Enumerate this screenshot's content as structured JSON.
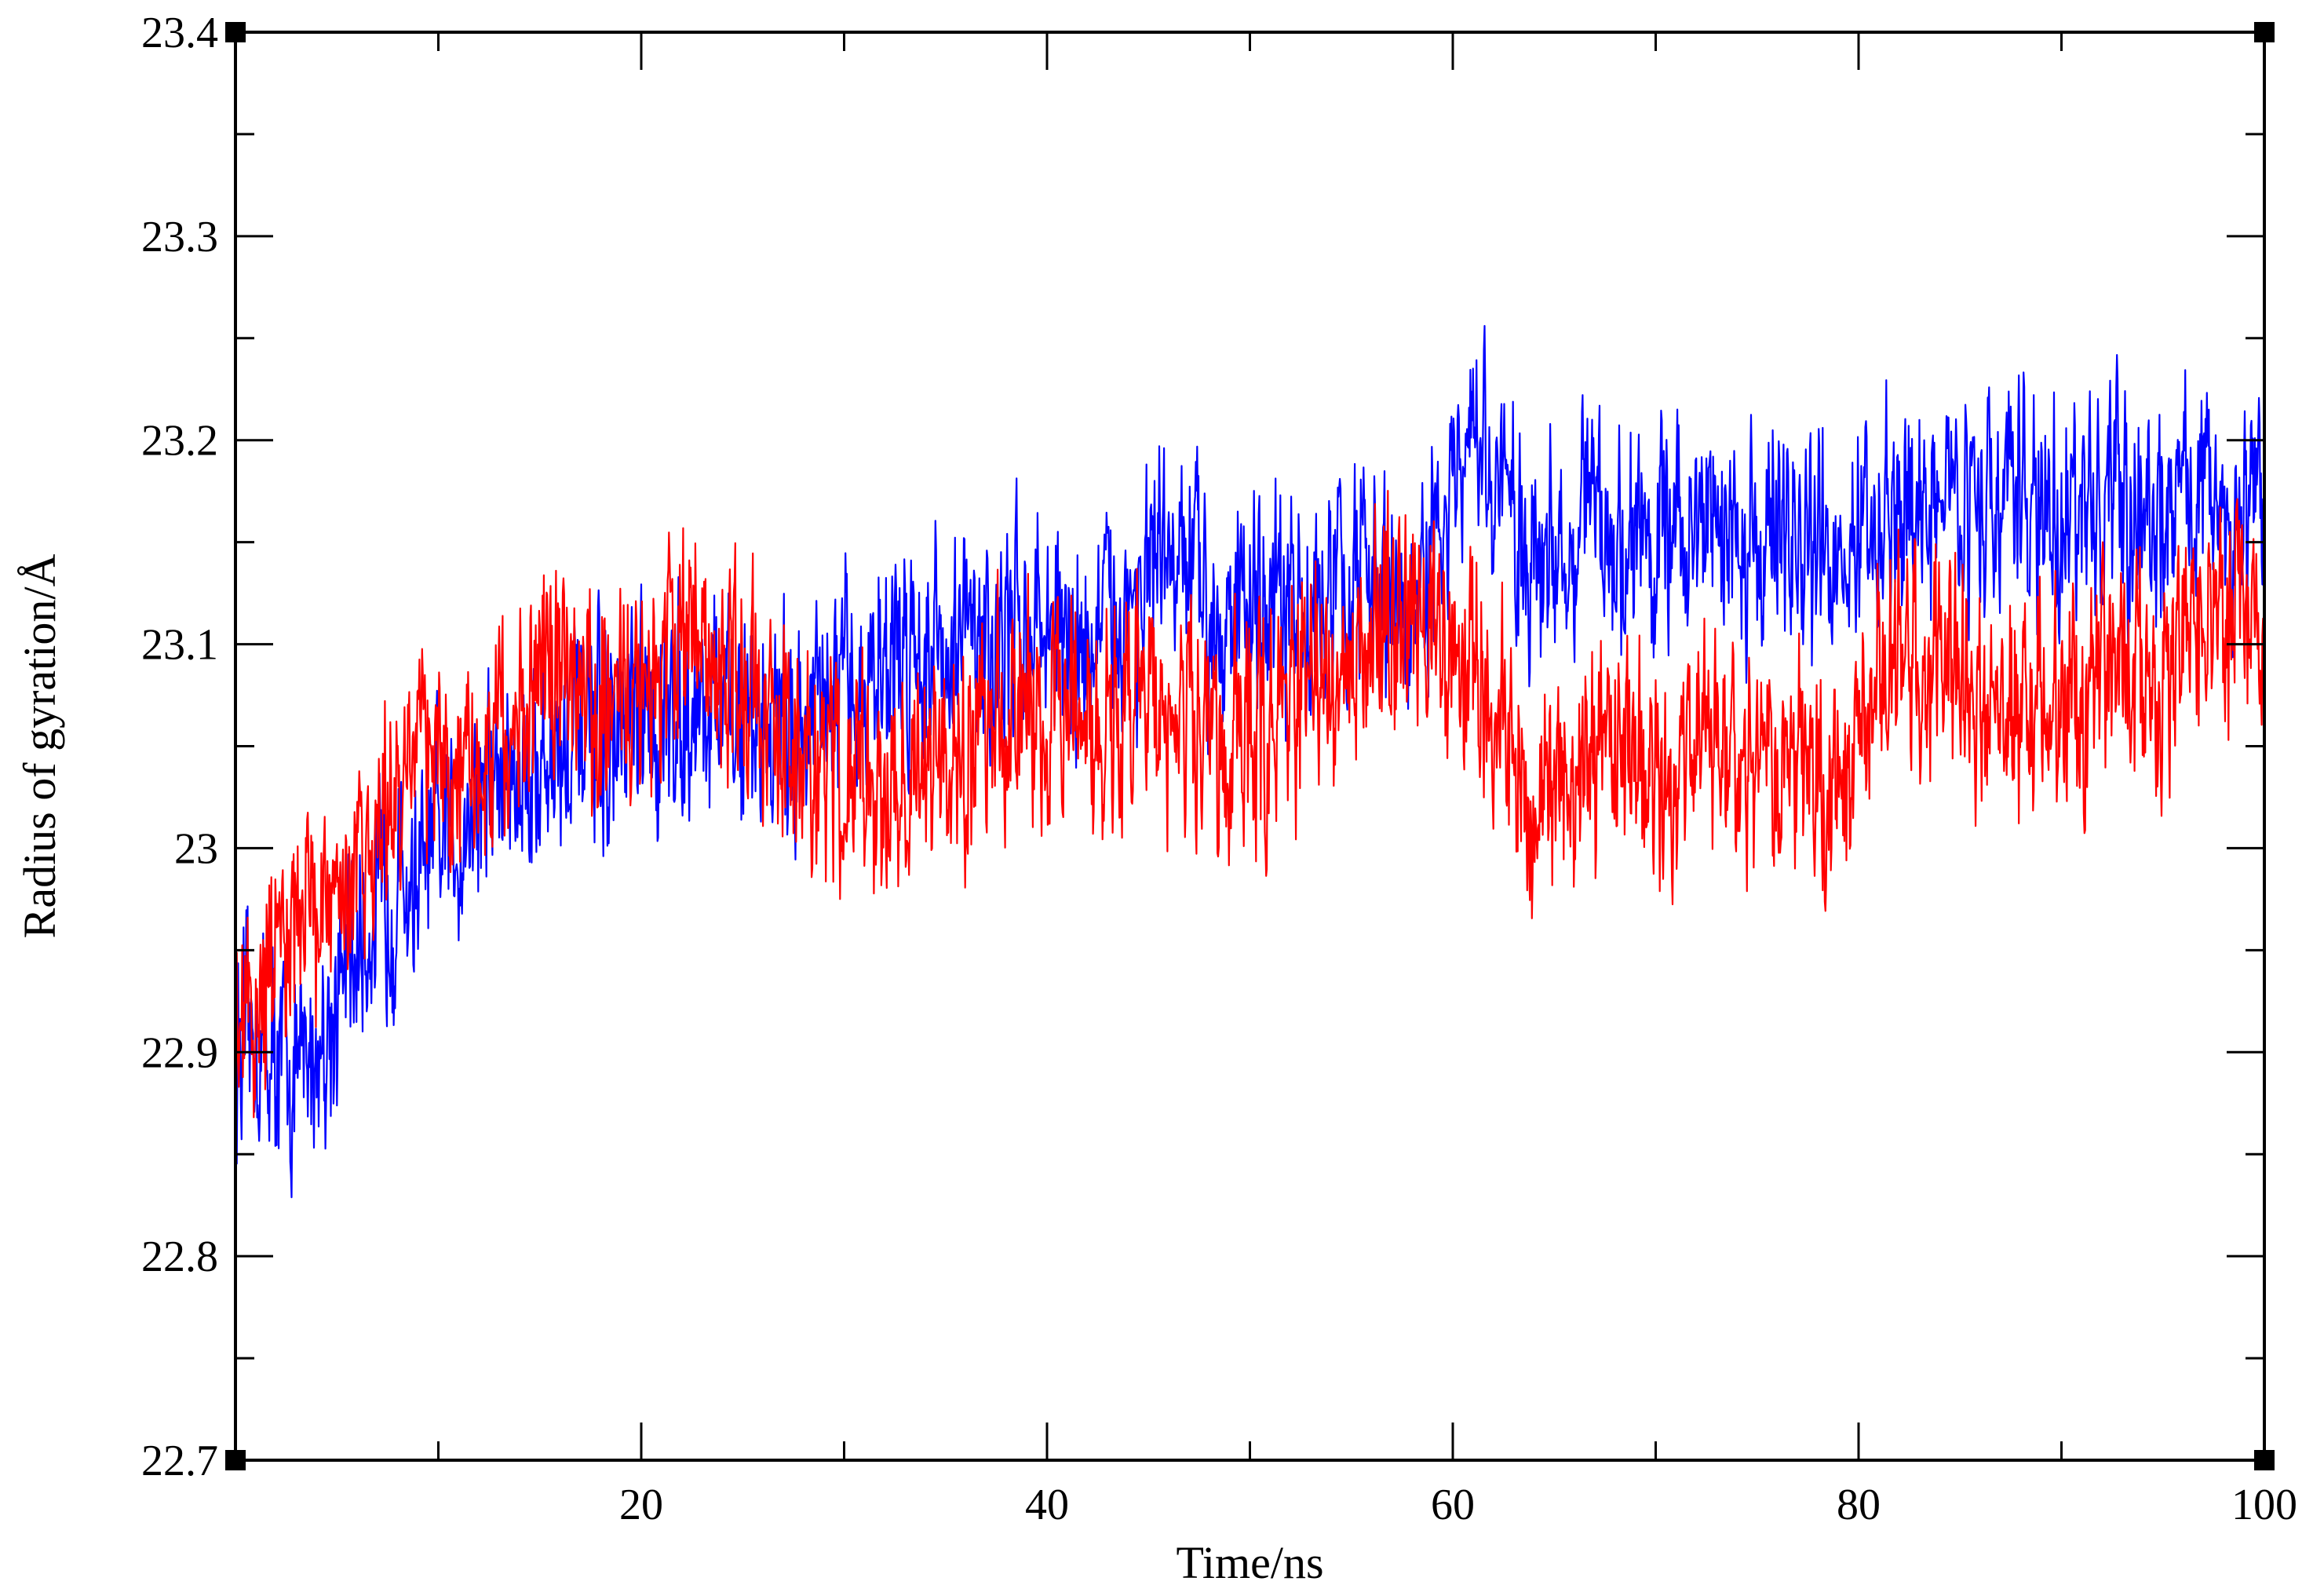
{
  "chart_data": {
    "type": "line",
    "title": "",
    "xlabel": "Time/ns",
    "ylabel": "Radius of gyration/Å",
    "xlim": [
      0,
      100
    ],
    "ylim": [
      22.7,
      23.4
    ],
    "x_ticks": [
      20,
      40,
      60,
      80,
      100
    ],
    "x_tick_labels": [
      "20",
      "40",
      "60",
      "80",
      "100"
    ],
    "y_ticks": [
      22.7,
      22.8,
      22.9,
      23.0,
      23.1,
      23.2,
      23.3,
      23.4
    ],
    "y_tick_labels": [
      "22.7",
      "22.8",
      "22.9",
      "23",
      "23.1",
      "23.2",
      "23.3",
      "23.4"
    ],
    "grid": false,
    "legend": "none",
    "series": [
      {
        "color": "#0000ff",
        "x": [
          0,
          1,
          2,
          3,
          4,
          5,
          6,
          7,
          8,
          9,
          10,
          11,
          12,
          13,
          14,
          15,
          16,
          17,
          18,
          19,
          20,
          21,
          22,
          23,
          24,
          25,
          26,
          27,
          28,
          29,
          30,
          31,
          32,
          33,
          34,
          35,
          36,
          37,
          38,
          39,
          40,
          41,
          42,
          43,
          44,
          45,
          46,
          47,
          48,
          49,
          50,
          51,
          52,
          53,
          54,
          55,
          56,
          57,
          58,
          59,
          60,
          61,
          62,
          63,
          64,
          65,
          66,
          67,
          68,
          69,
          70,
          71,
          72,
          73,
          74,
          75,
          76,
          77,
          78,
          79,
          80,
          81,
          82,
          83,
          84,
          85,
          86,
          87,
          88,
          89,
          90,
          91,
          92,
          93,
          94,
          95,
          96,
          97,
          98,
          99,
          100
        ],
        "y": [
          22.9,
          22.91,
          22.9,
          22.89,
          22.9,
          22.93,
          22.95,
          22.97,
          22.98,
          22.98,
          23.0,
          23.01,
          23.03,
          23.03,
          23.04,
          23.04,
          23.05,
          23.05,
          23.05,
          23.05,
          23.06,
          23.06,
          23.07,
          23.07,
          23.07,
          23.06,
          23.06,
          23.06,
          23.06,
          23.07,
          23.07,
          23.08,
          23.09,
          23.1,
          23.1,
          23.1,
          23.1,
          23.1,
          23.1,
          23.11,
          23.11,
          23.1,
          23.1,
          23.11,
          23.12,
          23.13,
          23.14,
          23.13,
          23.12,
          23.12,
          23.12,
          23.11,
          23.11,
          23.12,
          23.12,
          23.13,
          23.13,
          23.12,
          23.11,
          23.14,
          23.17,
          23.19,
          23.18,
          23.16,
          23.15,
          23.14,
          23.16,
          23.17,
          23.15,
          23.15,
          23.15,
          23.15,
          23.16,
          23.16,
          23.15,
          23.15,
          23.16,
          23.15,
          23.14,
          23.15,
          23.15,
          23.15,
          23.16,
          23.17,
          23.17,
          23.18,
          23.17,
          23.17,
          23.17,
          23.16,
          23.16,
          23.17,
          23.17,
          23.16,
          23.16,
          23.17,
          23.18,
          23.18,
          23.17,
          23.16,
          23.17
        ]
      },
      {
        "color": "#ff0000",
        "x": [
          0,
          1,
          2,
          3,
          4,
          5,
          6,
          7,
          8,
          9,
          10,
          11,
          12,
          13,
          14,
          15,
          16,
          17,
          18,
          19,
          20,
          21,
          22,
          23,
          24,
          25,
          26,
          27,
          28,
          29,
          30,
          31,
          32,
          33,
          34,
          35,
          36,
          37,
          38,
          39,
          40,
          41,
          42,
          43,
          44,
          45,
          46,
          47,
          48,
          49,
          50,
          51,
          52,
          53,
          54,
          55,
          56,
          57,
          58,
          59,
          60,
          61,
          62,
          63,
          64,
          65,
          66,
          67,
          68,
          69,
          70,
          71,
          72,
          73,
          74,
          75,
          76,
          77,
          78,
          79,
          80,
          81,
          82,
          83,
          84,
          85,
          86,
          87,
          88,
          89,
          90,
          91,
          92,
          93,
          94,
          95,
          96,
          97,
          98,
          99,
          100
        ],
        "y": [
          22.9,
          22.92,
          22.94,
          22.95,
          22.97,
          22.98,
          23.0,
          23.01,
          23.03,
          23.04,
          23.05,
          23.04,
          23.04,
          23.05,
          23.06,
          23.07,
          23.08,
          23.07,
          23.07,
          23.08,
          23.08,
          23.09,
          23.1,
          23.11,
          23.09,
          23.07,
          23.06,
          23.05,
          23.05,
          23.05,
          23.04,
          23.03,
          23.02,
          23.03,
          23.04,
          23.05,
          23.05,
          23.06,
          23.07,
          23.07,
          23.07,
          23.07,
          23.06,
          23.06,
          23.07,
          23.08,
          23.07,
          23.06,
          23.05,
          23.05,
          23.05,
          23.06,
          23.07,
          23.08,
          23.09,
          23.09,
          23.1,
          23.11,
          23.12,
          23.11,
          23.1,
          23.09,
          23.08,
          23.04,
          23.02,
          23.02,
          23.03,
          23.04,
          23.05,
          23.04,
          23.04,
          23.04,
          23.05,
          23.06,
          23.05,
          23.04,
          23.04,
          23.05,
          23.04,
          23.03,
          23.05,
          23.08,
          23.1,
          23.09,
          23.08,
          23.08,
          23.07,
          23.07,
          23.08,
          23.08,
          23.07,
          23.07,
          23.08,
          23.07,
          23.08,
          23.09,
          23.1,
          23.1,
          23.11,
          23.1,
          23.11
        ]
      }
    ]
  }
}
